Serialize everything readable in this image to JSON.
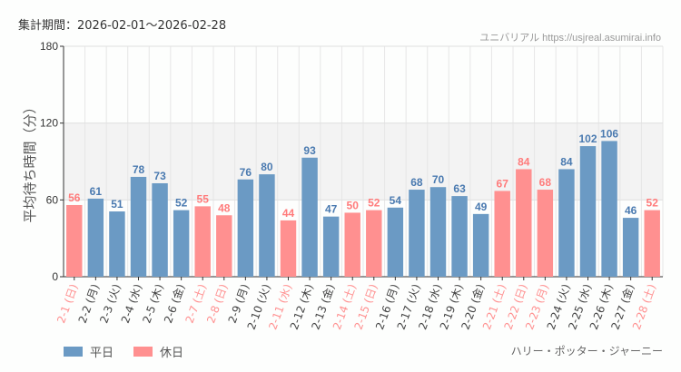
{
  "header": {
    "period": "集計期間：2026-02-01～2026-02-28",
    "credit": "ユニバリアル  https://usjreal.asumirai.info"
  },
  "attraction": "ハリー・ポッター・ジャーニー",
  "legend": {
    "weekday": "平日",
    "holiday": "休日"
  },
  "colors": {
    "weekday": "#6b9ac4",
    "holiday": "#ff9090",
    "weekday_text": "#4a7ab0",
    "holiday_text": "#ff7b7b"
  },
  "chart_data": {
    "type": "bar",
    "ylabel": "平均待ち時間（分）",
    "ylim": [
      0,
      180
    ],
    "yticks": [
      "0",
      "60",
      "120",
      "180"
    ],
    "categories": [
      "2-1 (日)",
      "2-2 (月)",
      "2-3 (火)",
      "2-4 (水)",
      "2-5 (木)",
      "2-6 (金)",
      "2-7 (土)",
      "2-8 (日)",
      "2-9 (月)",
      "2-10 (火)",
      "2-11 (水)",
      "2-12 (木)",
      "2-13 (金)",
      "2-14 (土)",
      "2-15 (日)",
      "2-16 (月)",
      "2-17 (火)",
      "2-18 (水)",
      "2-19 (木)",
      "2-20 (金)",
      "2-21 (土)",
      "2-22 (日)",
      "2-23 (月)",
      "2-24 (火)",
      "2-25 (水)",
      "2-26 (木)",
      "2-27 (金)",
      "2-28 (土)"
    ],
    "values": [
      56,
      61,
      51,
      78,
      73,
      52,
      55,
      48,
      76,
      80,
      44,
      93,
      47,
      50,
      52,
      54,
      68,
      70,
      63,
      49,
      67,
      84,
      68,
      84,
      102,
      106,
      46,
      52
    ],
    "holiday": [
      1,
      0,
      0,
      0,
      0,
      0,
      1,
      1,
      0,
      0,
      1,
      0,
      0,
      1,
      1,
      0,
      0,
      0,
      0,
      0,
      1,
      1,
      1,
      0,
      0,
      0,
      0,
      1
    ]
  }
}
